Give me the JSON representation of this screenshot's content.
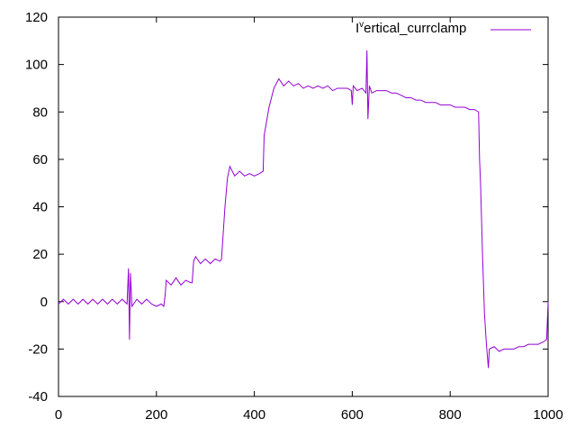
{
  "chart_data": {
    "type": "line",
    "title": "",
    "xlabel": "",
    "ylabel": "",
    "xlim": [
      0,
      1000
    ],
    "ylim": [
      -40,
      120
    ],
    "xticks": [
      0,
      200,
      400,
      600,
      800,
      1000
    ],
    "yticks": [
      -40,
      -20,
      0,
      20,
      40,
      60,
      80,
      100,
      120
    ],
    "grid": false,
    "legend_position": "top-right",
    "legend": {
      "main": "I",
      "sup": "v",
      "rest": "ertical_currclamp"
    },
    "series": [
      {
        "color": "#9400d3",
        "x": [
          0,
          10,
          20,
          30,
          40,
          50,
          60,
          70,
          80,
          90,
          100,
          110,
          120,
          130,
          140,
          143,
          145,
          147,
          150,
          160,
          170,
          180,
          190,
          200,
          210,
          215,
          218,
          220,
          230,
          240,
          250,
          260,
          270,
          273,
          276,
          280,
          290,
          300,
          310,
          320,
          330,
          333,
          340,
          345,
          350,
          360,
          370,
          380,
          390,
          400,
          410,
          418,
          420,
          430,
          440,
          450,
          460,
          470,
          480,
          490,
          500,
          510,
          520,
          530,
          540,
          550,
          560,
          570,
          580,
          590,
          598,
          600,
          602,
          610,
          620,
          628,
          630,
          632,
          635,
          640,
          650,
          660,
          670,
          680,
          690,
          700,
          710,
          720,
          730,
          740,
          750,
          760,
          770,
          780,
          790,
          800,
          810,
          820,
          830,
          840,
          850,
          858,
          860,
          862,
          866,
          870,
          874,
          878,
          880,
          890,
          900,
          910,
          920,
          930,
          940,
          950,
          960,
          970,
          980,
          990,
          997,
          1000
        ],
        "y": [
          -1,
          1,
          -1,
          1,
          -1,
          1,
          -1,
          1,
          -1,
          1,
          -1,
          1,
          -1,
          1,
          -1,
          14,
          -16,
          12,
          -2,
          1,
          -1,
          1,
          -1,
          -2,
          -1,
          -2,
          3,
          9,
          7,
          10,
          7,
          9,
          8,
          8,
          17,
          19,
          16,
          18,
          16,
          18,
          17,
          18,
          40,
          52,
          57,
          53,
          55,
          53,
          54,
          53,
          54,
          55,
          70,
          82,
          90,
          94,
          91,
          93,
          91,
          92,
          90,
          91,
          90,
          91,
          90,
          91,
          89,
          90,
          90,
          90,
          89,
          83,
          91,
          89,
          90,
          88,
          106,
          77,
          91,
          88,
          89,
          89,
          89,
          88,
          88,
          87,
          86,
          86,
          85,
          85,
          84,
          84,
          84,
          83,
          83,
          83,
          82,
          82,
          82,
          81,
          81,
          80,
          60,
          50,
          20,
          -5,
          -18,
          -28,
          -20,
          -19,
          -21,
          -20,
          -20,
          -20,
          -19,
          -19,
          -18,
          -18,
          -18,
          -17,
          -16,
          0
        ]
      }
    ]
  }
}
